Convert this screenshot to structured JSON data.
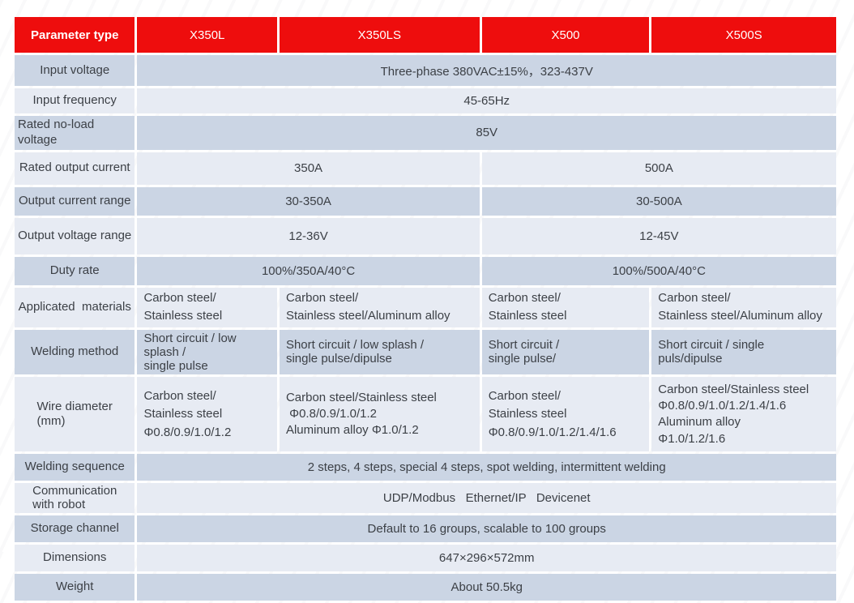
{
  "colors": {
    "header_bg": "#ee0d0d",
    "header_text": "#ffffff",
    "row_dark": "#cbd5e4",
    "row_light": "#e7ebf3",
    "cell_text": "#3c4046"
  },
  "table": {
    "header": {
      "parameter_type": "Parameter type",
      "models": [
        "X350L",
        "X350LS",
        "X500",
        "X500S"
      ]
    },
    "rows": [
      {
        "label": "Input voltage",
        "cells": [
          {
            "text": "Three-phase 380VAC±15%，323-437V",
            "span": 4
          }
        ]
      },
      {
        "label": "Input frequency",
        "cells": [
          {
            "text": "45-65Hz",
            "span": 4
          }
        ]
      },
      {
        "label": "Rated no-load voltage",
        "cells": [
          {
            "text": "85V",
            "span": 4
          }
        ]
      },
      {
        "label": "Rated output current",
        "cells": [
          {
            "text": "350A",
            "span": 2
          },
          {
            "text": "500A",
            "span": 2
          }
        ]
      },
      {
        "label": "Output current range",
        "cells": [
          {
            "text": "30-350A",
            "span": 2
          },
          {
            "text": "30-500A",
            "span": 2
          }
        ]
      },
      {
        "label": "Output voltage range",
        "cells": [
          {
            "text": "12-36V",
            "span": 2
          },
          {
            "text": "12-45V",
            "span": 2
          }
        ]
      },
      {
        "label": "Duty rate",
        "cells": [
          {
            "text": "100%/350A/40°C",
            "span": 2
          },
          {
            "text": "100%/500A/40°C",
            "span": 2
          }
        ]
      },
      {
        "label": "Applicated  materials",
        "cells": [
          {
            "text": "Carbon steel/\nStainless steel",
            "span": 1
          },
          {
            "text": "Carbon steel/\nStainless steel/Aluminum alloy",
            "span": 1
          },
          {
            "text": "Carbon steel/\nStainless steel",
            "span": 1
          },
          {
            "text": "Carbon steel/\nStainless steel/Aluminum alloy",
            "span": 1
          }
        ]
      },
      {
        "label": "Welding method",
        "cells": [
          {
            "text": "Short circuit / low splash /\nsingle pulse",
            "span": 1
          },
          {
            "text": "Short circuit / low splash /\nsingle pulse/dipulse",
            "span": 1
          },
          {
            "text": "Short circuit /\nsingle pulse/",
            "span": 1
          },
          {
            "text": "Short circuit / single puls/dipulse",
            "span": 1
          }
        ]
      },
      {
        "label": "Wire diameter\n(mm)",
        "cells": [
          {
            "text": "Carbon steel/\nStainless steel\nΦ0.8/0.9/1.0/1.2",
            "span": 1
          },
          {
            "text": "Carbon steel/Stainless steel\n Φ0.8/0.9/1.0/1.2\nAluminum alloy Φ1.0/1.2",
            "span": 1
          },
          {
            "text": "Carbon steel/\nStainless steel\nΦ0.8/0.9/1.0/1.2/1.4/1.6",
            "span": 1
          },
          {
            "text": "Carbon steel/Stainless steel\nΦ0.8/0.9/1.0/1.2/1.4/1.6\nAluminum alloy\nΦ1.0/1.2/1.6",
            "span": 1
          }
        ]
      },
      {
        "label": "Welding sequence",
        "cells": [
          {
            "text": "2 steps, 4 steps, special 4 steps, spot welding, intermittent welding",
            "span": 4
          }
        ]
      },
      {
        "label": "Communication\nwith robot",
        "cells": [
          {
            "text": "UDP/Modbus   Ethernet/IP   Devicenet",
            "span": 4
          }
        ]
      },
      {
        "label": "Storage channel",
        "cells": [
          {
            "text": "Default to 16 groups, scalable to 100 groups",
            "span": 4
          }
        ]
      },
      {
        "label": "Dimensions",
        "cells": [
          {
            "text": "647×296×572mm",
            "span": 4
          }
        ]
      },
      {
        "label": "Weight",
        "cells": [
          {
            "text": "About 50.5kg",
            "span": 4
          }
        ]
      }
    ]
  }
}
